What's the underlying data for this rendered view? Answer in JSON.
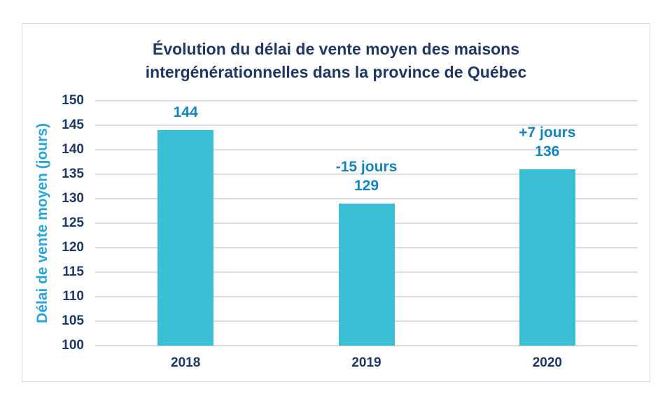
{
  "chart_data": {
    "type": "bar",
    "title_line1": "Évolution du délai de vente moyen des maisons",
    "title_line2": "intergénérationnelles dans la province de Québec",
    "title": "Évolution du délai de vente moyen des maisons intergénérationnelles dans la province de Québec",
    "xlabel": "",
    "ylabel": "Délai de vente moyen (jours)",
    "categories": [
      "2018",
      "2019",
      "2020"
    ],
    "values": [
      144,
      129,
      136
    ],
    "annotations": [
      "",
      "-15 jours",
      "+7 jours"
    ],
    "data_labels": [
      "144",
      "129",
      "136"
    ],
    "ylim": [
      100,
      150
    ],
    "yticks": [
      100,
      105,
      110,
      115,
      120,
      125,
      130,
      135,
      140,
      145,
      150
    ],
    "grid": "horizontal",
    "legend": "none",
    "colors": {
      "bar": "#3BBFD4",
      "title": "#1F3864",
      "tick_label": "#1F3864",
      "axis_label": "#29A5DC",
      "data_label": "#1484BE",
      "gridline": "#DCDCDC",
      "frame_border": "#D7D7D7"
    }
  }
}
